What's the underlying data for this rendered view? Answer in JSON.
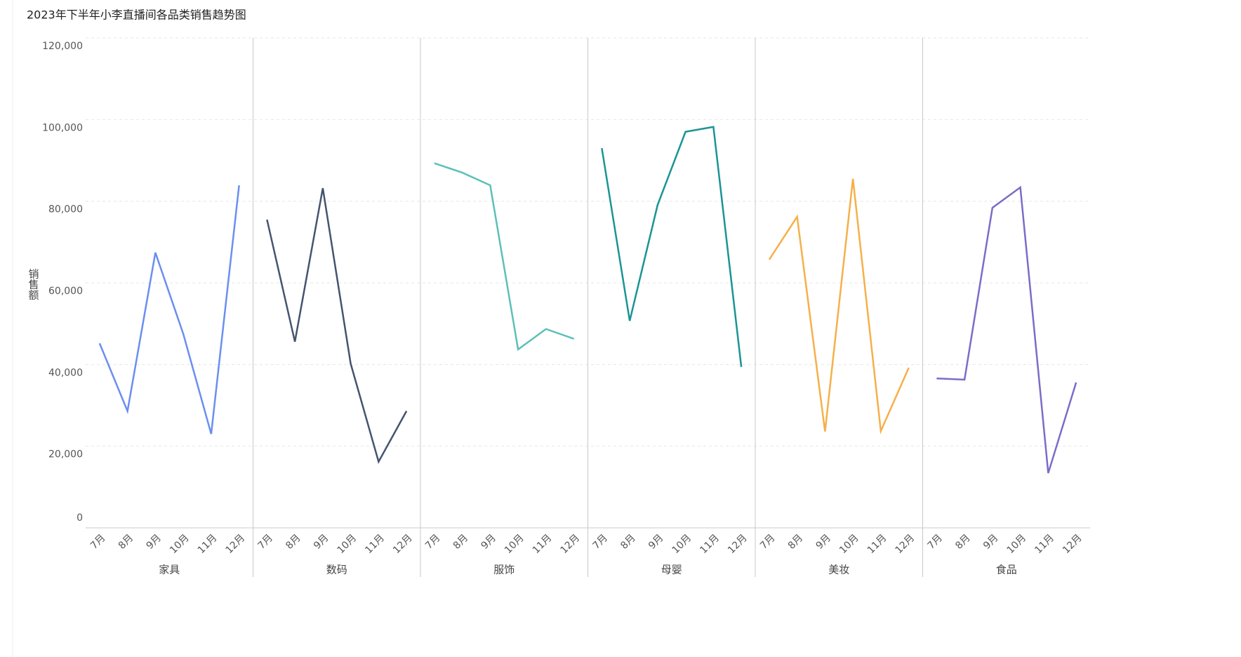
{
  "chart_data": {
    "type": "line",
    "title": "2023年下半年小李直播间各品类销售趋势图",
    "y_label": "销售额",
    "categories": [
      "7月",
      "8月",
      "9月",
      "10月",
      "11月",
      "12月"
    ],
    "series": [
      {
        "name": "家具",
        "color": "#6b8ef0",
        "values": [
          45200,
          28600,
          67400,
          47500,
          23000,
          83900
        ]
      },
      {
        "name": "数码",
        "color": "#44546f",
        "values": [
          75500,
          45600,
          83200,
          40200,
          16200,
          28600
        ]
      },
      {
        "name": "服饰",
        "color": "#5cc0b8",
        "values": [
          89300,
          87000,
          83900,
          43700,
          48700,
          46300
        ]
      },
      {
        "name": "母婴",
        "color": "#1a9494",
        "values": [
          93000,
          50700,
          79100,
          97000,
          98200,
          39400
        ]
      },
      {
        "name": "美妆",
        "color": "#f5b04a",
        "values": [
          65700,
          76200,
          23600,
          85500,
          23700,
          39200
        ]
      },
      {
        "name": "食品",
        "color": "#7b6cc8",
        "values": [
          36600,
          36300,
          78400,
          83400,
          13400,
          35600
        ]
      }
    ],
    "ylim": [
      0,
      120000
    ],
    "yticks": [
      0,
      {
        "value": 20000,
        "label": "20,000"
      },
      {
        "value": 40000,
        "label": "40,000"
      },
      {
        "value": 60000,
        "label": "60,000"
      },
      {
        "value": 80000,
        "label": "80,000"
      },
      {
        "value": 100000,
        "label": "100,000"
      },
      {
        "value": 120000,
        "label": "120,000"
      }
    ],
    "grid": true
  }
}
